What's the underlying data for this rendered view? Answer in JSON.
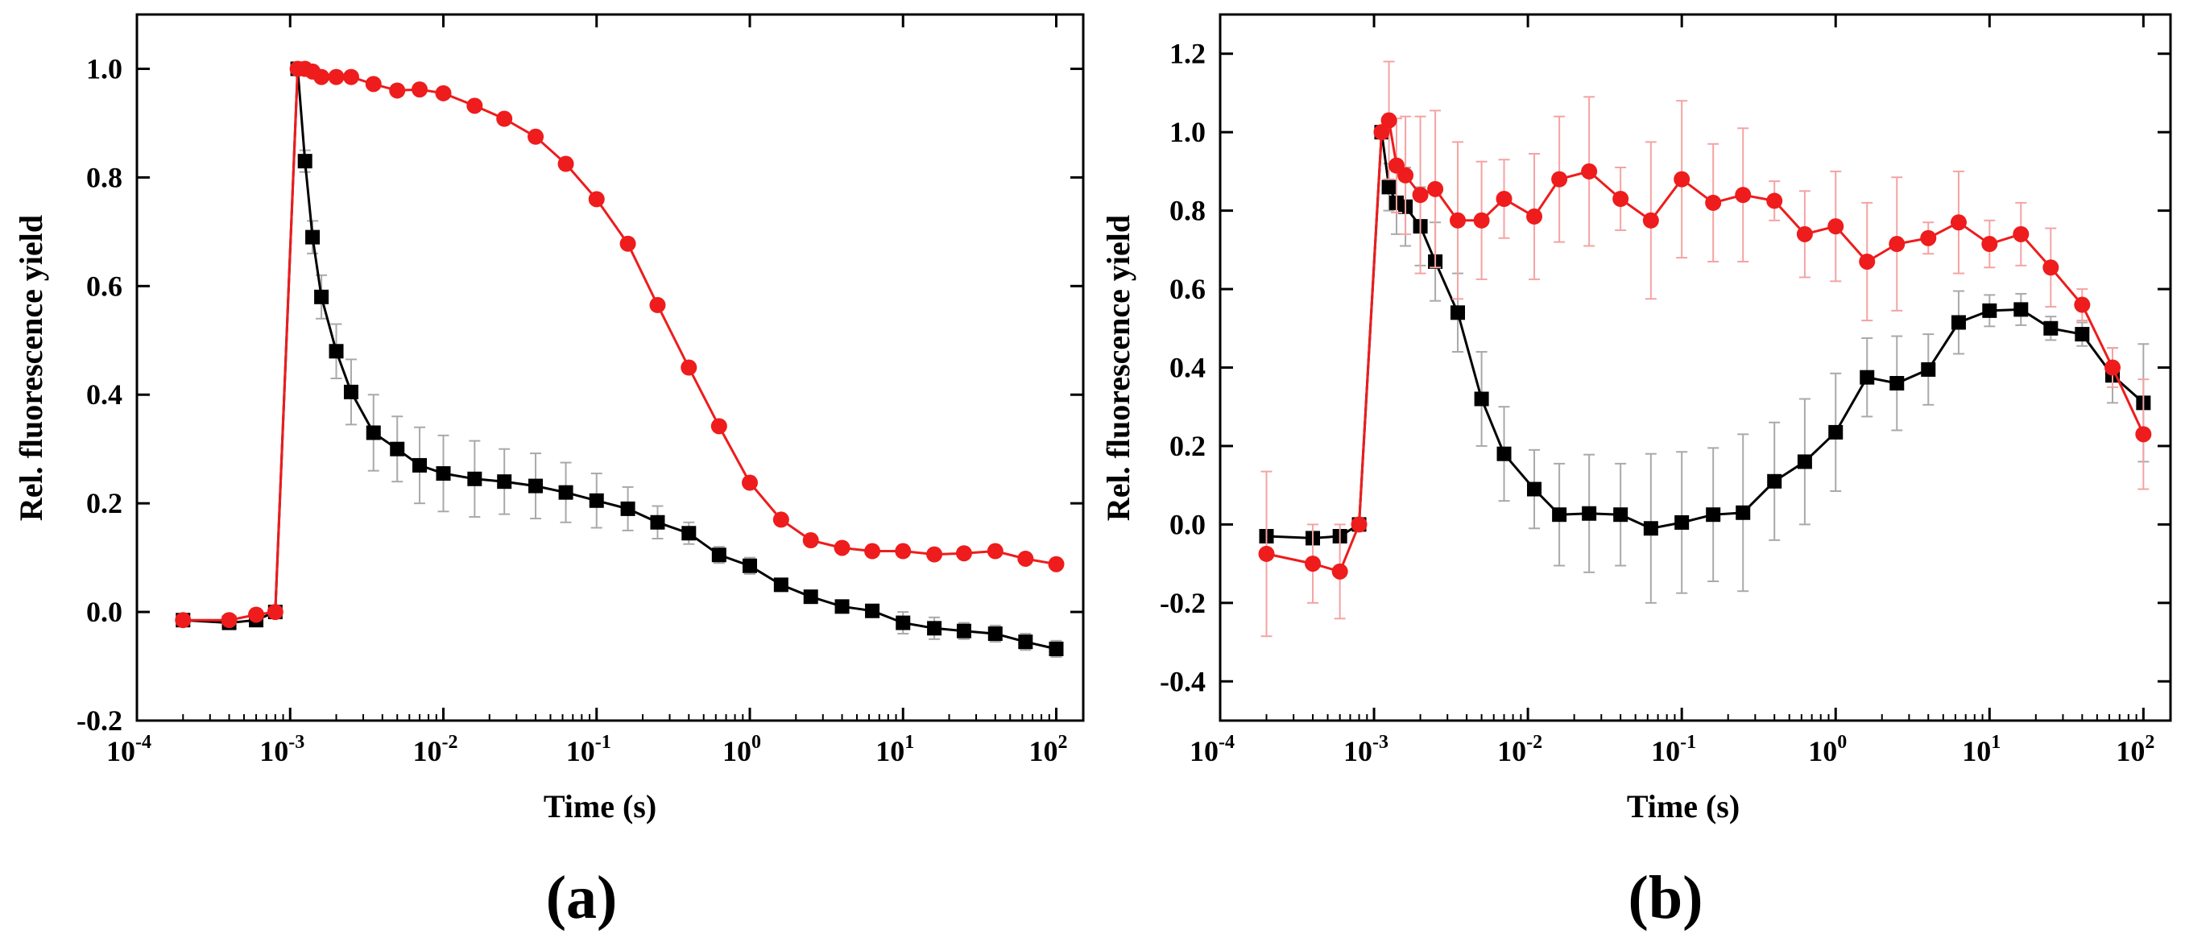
{
  "chart_data": [
    {
      "type": "line",
      "panel_label": "(a)",
      "xlabel": "Time (s)",
      "ylabel": "Rel. fluorescence yield",
      "xscale": "log",
      "xlim": [
        0.0001,
        150
      ],
      "ylim": [
        -0.2,
        1.1
      ],
      "xticks": [
        {
          "value": 0.0001,
          "base": "10",
          "exp": "-4"
        },
        {
          "value": 0.001,
          "base": "10",
          "exp": "-3"
        },
        {
          "value": 0.01,
          "base": "10",
          "exp": "-2"
        },
        {
          "value": 0.1,
          "base": "10",
          "exp": "-1"
        },
        {
          "value": 1,
          "base": "10",
          "exp": "0"
        },
        {
          "value": 10,
          "base": "10",
          "exp": "1"
        },
        {
          "value": 100,
          "base": "10",
          "exp": "2"
        }
      ],
      "yticks": [
        {
          "value": -0.2,
          "label": "-0.2"
        },
        {
          "value": 0.0,
          "label": "0.0"
        },
        {
          "value": 0.2,
          "label": "0.2"
        },
        {
          "value": 0.4,
          "label": "0.4"
        },
        {
          "value": 0.6,
          "label": "0.6"
        },
        {
          "value": 0.8,
          "label": "0.8"
        },
        {
          "value": 1.0,
          "label": "1.0"
        }
      ],
      "series": [
        {
          "name": "black squares",
          "color": "#000000",
          "marker": "square",
          "x": [
            0.0002,
            0.0004,
            0.0006,
            0.0008,
            0.00112,
            0.00125,
            0.0014,
            0.0016,
            0.002,
            0.0025,
            0.0035,
            0.005,
            0.007,
            0.01,
            0.016,
            0.025,
            0.04,
            0.063,
            0.1,
            0.16,
            0.25,
            0.4,
            0.63,
            1.0,
            1.6,
            2.5,
            4.0,
            6.3,
            10,
            16,
            25,
            40,
            63,
            100
          ],
          "y": [
            -0.015,
            -0.02,
            -0.015,
            0.0,
            1.0,
            0.83,
            0.69,
            0.58,
            0.48,
            0.405,
            0.33,
            0.3,
            0.27,
            0.255,
            0.245,
            0.24,
            0.232,
            0.22,
            0.205,
            0.19,
            0.165,
            0.145,
            0.105,
            0.085,
            0.05,
            0.028,
            0.01,
            0.002,
            -0.02,
            -0.03,
            -0.035,
            -0.04,
            -0.055,
            -0.068
          ],
          "err": [
            0,
            0,
            0,
            0,
            0,
            0.02,
            0.03,
            0.04,
            0.05,
            0.06,
            0.07,
            0.06,
            0.07,
            0.07,
            0.07,
            0.06,
            0.06,
            0.055,
            0.05,
            0.04,
            0.03,
            0.02,
            0.015,
            0.015,
            0.01,
            0.01,
            0.01,
            0.01,
            0.02,
            0.02,
            0.015,
            0.015,
            0.015,
            0.015
          ]
        },
        {
          "name": "red circles",
          "color": "#ee1c1c",
          "marker": "circle",
          "x": [
            0.0002,
            0.0004,
            0.0006,
            0.0008,
            0.00112,
            0.00125,
            0.0014,
            0.0016,
            0.002,
            0.0025,
            0.0035,
            0.005,
            0.007,
            0.01,
            0.016,
            0.025,
            0.04,
            0.063,
            0.1,
            0.16,
            0.25,
            0.4,
            0.63,
            1.0,
            1.6,
            2.5,
            4.0,
            6.3,
            10,
            16,
            25,
            40,
            63,
            100
          ],
          "y": [
            -0.015,
            -0.015,
            -0.005,
            0.0,
            1.0,
            1.0,
            0.995,
            0.985,
            0.985,
            0.985,
            0.972,
            0.96,
            0.962,
            0.955,
            0.932,
            0.908,
            0.875,
            0.825,
            0.76,
            0.678,
            0.565,
            0.45,
            0.342,
            0.238,
            0.17,
            0.132,
            0.118,
            0.112,
            0.112,
            0.106,
            0.108,
            0.112,
            0.098,
            0.088
          ],
          "err": [
            0,
            0,
            0,
            0,
            0,
            0,
            0,
            0,
            0,
            0,
            0,
            0,
            0,
            0,
            0,
            0,
            0,
            0,
            0,
            0,
            0,
            0,
            0,
            0,
            0,
            0,
            0,
            0,
            0,
            0,
            0,
            0,
            0,
            0
          ]
        }
      ]
    },
    {
      "type": "line",
      "panel_label": "(b)",
      "xlabel": "Time (s)",
      "ylabel": "Rel. fluorescence yield",
      "xscale": "log",
      "xlim": [
        0.0001,
        150
      ],
      "ylim": [
        -0.5,
        1.3
      ],
      "xticks": [
        {
          "value": 0.0001,
          "base": "10",
          "exp": "-4"
        },
        {
          "value": 0.001,
          "base": "10",
          "exp": "-3"
        },
        {
          "value": 0.01,
          "base": "10",
          "exp": "-2"
        },
        {
          "value": 0.1,
          "base": "10",
          "exp": "-1"
        },
        {
          "value": 1,
          "base": "10",
          "exp": "0"
        },
        {
          "value": 10,
          "base": "10",
          "exp": "1"
        },
        {
          "value": 100,
          "base": "10",
          "exp": "2"
        }
      ],
      "yticks": [
        {
          "value": -0.4,
          "label": "-0.4"
        },
        {
          "value": -0.2,
          "label": "-0.2"
        },
        {
          "value": 0.0,
          "label": "0.0"
        },
        {
          "value": 0.2,
          "label": "0.2"
        },
        {
          "value": 0.4,
          "label": "0.4"
        },
        {
          "value": 0.6,
          "label": "0.6"
        },
        {
          "value": 0.8,
          "label": "0.8"
        },
        {
          "value": 1.0,
          "label": "1.0"
        },
        {
          "value": 1.2,
          "label": "1.2"
        }
      ],
      "series": [
        {
          "name": "black squares",
          "color": "#000000",
          "marker": "square",
          "x": [
            0.0002,
            0.0004,
            0.0006,
            0.0008,
            0.00112,
            0.00125,
            0.0014,
            0.0016,
            0.002,
            0.0025,
            0.0035,
            0.005,
            0.007,
            0.011,
            0.016,
            0.025,
            0.04,
            0.063,
            0.1,
            0.16,
            0.25,
            0.4,
            0.63,
            1.0,
            1.6,
            2.5,
            4.0,
            6.3,
            10,
            16,
            25,
            40,
            63,
            100
          ],
          "y": [
            -0.03,
            -0.035,
            -0.03,
            0.0,
            1.0,
            0.86,
            0.82,
            0.81,
            0.76,
            0.67,
            0.54,
            0.32,
            0.18,
            0.09,
            0.025,
            0.028,
            0.025,
            -0.01,
            0.005,
            0.025,
            0.03,
            0.11,
            0.16,
            0.235,
            0.375,
            0.36,
            0.395,
            0.515,
            0.545,
            0.548,
            0.5,
            0.485,
            0.38,
            0.31
          ],
          "err": [
            0,
            0,
            0,
            0,
            0,
            0.06,
            0.08,
            0.1,
            0.1,
            0.1,
            0.1,
            0.12,
            0.12,
            0.1,
            0.13,
            0.15,
            0.13,
            0.19,
            0.18,
            0.17,
            0.2,
            0.15,
            0.16,
            0.15,
            0.1,
            0.12,
            0.09,
            0.08,
            0.04,
            0.04,
            0.03,
            0.03,
            0.07,
            0.15
          ]
        },
        {
          "name": "red circles",
          "color": "#ee1c1c",
          "marker": "circle",
          "x": [
            0.0002,
            0.0004,
            0.0006,
            0.0008,
            0.00112,
            0.00125,
            0.0014,
            0.0016,
            0.002,
            0.0025,
            0.0035,
            0.005,
            0.007,
            0.011,
            0.016,
            0.025,
            0.04,
            0.063,
            0.1,
            0.16,
            0.25,
            0.4,
            0.63,
            1.0,
            1.6,
            2.5,
            4.0,
            6.3,
            10,
            16,
            25,
            40,
            63,
            100
          ],
          "y": [
            -0.075,
            -0.1,
            -0.12,
            0.0,
            1.0,
            1.03,
            0.915,
            0.89,
            0.84,
            0.855,
            0.775,
            0.775,
            0.83,
            0.785,
            0.88,
            0.9,
            0.83,
            0.775,
            0.88,
            0.82,
            0.84,
            0.825,
            0.74,
            0.76,
            0.67,
            0.715,
            0.73,
            0.77,
            0.715,
            0.74,
            0.655,
            0.56,
            0.4,
            0.23
          ],
          "err": [
            0.21,
            0.1,
            0.12,
            0,
            0,
            0.15,
            0.12,
            0.15,
            0.2,
            0.2,
            0.2,
            0.15,
            0.1,
            0.16,
            0.16,
            0.19,
            0.08,
            0.2,
            0.2,
            0.15,
            0.17,
            0.05,
            0.11,
            0.14,
            0.15,
            0.17,
            0.04,
            0.13,
            0.06,
            0.08,
            0.1,
            0.04,
            0.05,
            0.14
          ]
        }
      ]
    }
  ]
}
